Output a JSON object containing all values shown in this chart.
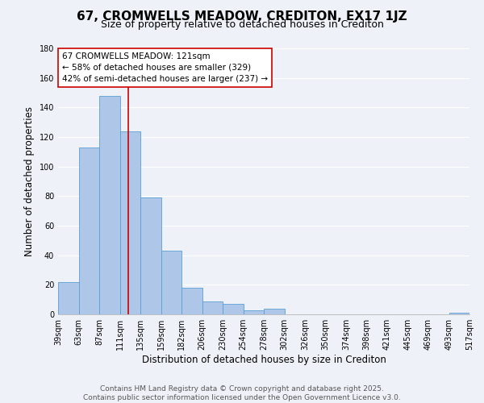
{
  "title": "67, CROMWELLS MEADOW, CREDITON, EX17 1JZ",
  "subtitle": "Size of property relative to detached houses in Crediton",
  "xlabel": "Distribution of detached houses by size in Crediton",
  "ylabel": "Number of detached properties",
  "bar_values": [
    22,
    113,
    148,
    124,
    79,
    43,
    18,
    9,
    7,
    3,
    4,
    0,
    0,
    0,
    0,
    0,
    0,
    0,
    0,
    1
  ],
  "bar_labels": [
    "39sqm",
    "63sqm",
    "87sqm",
    "111sqm",
    "135sqm",
    "159sqm",
    "182sqm",
    "206sqm",
    "230sqm",
    "254sqm",
    "278sqm",
    "302sqm",
    "326sqm",
    "350sqm",
    "374sqm",
    "398sqm",
    "421sqm",
    "445sqm",
    "469sqm",
    "493sqm",
    "517sqm"
  ],
  "bar_color": "#aec6e8",
  "bar_edge_color": "#5a9fd4",
  "vline_x": 3.42,
  "vline_color": "#cc0000",
  "annotation_text_line1": "67 CROMWELLS MEADOW: 121sqm",
  "annotation_text_line2": "← 58% of detached houses are smaller (329)",
  "annotation_text_line3": "42% of semi-detached houses are larger (237) →",
  "annotation_box_color": "#ffffff",
  "annotation_border_color": "#cc0000",
  "ylim": [
    0,
    180
  ],
  "yticks": [
    0,
    20,
    40,
    60,
    80,
    100,
    120,
    140,
    160,
    180
  ],
  "footer_line1": "Contains HM Land Registry data © Crown copyright and database right 2025.",
  "footer_line2": "Contains public sector information licensed under the Open Government Licence v3.0.",
  "background_color": "#eef2f8",
  "grid_color": "#ffffff",
  "title_fontsize": 11,
  "subtitle_fontsize": 9,
  "axis_label_fontsize": 8.5,
  "tick_fontsize": 7,
  "annotation_fontsize": 7.5,
  "footer_fontsize": 6.5
}
